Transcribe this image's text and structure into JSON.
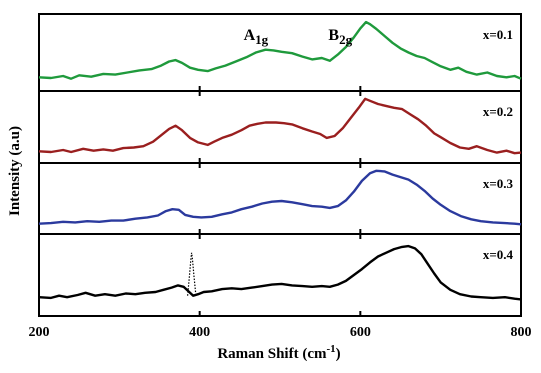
{
  "chart_data": {
    "type": "line",
    "xlabel": "Raman Shift (cm",
    "xlabel_sup": "-1",
    "xlabel_close": ")",
    "ylabel": "Intensity (a.u)",
    "xlim": [
      200,
      800
    ],
    "x_ticks": [
      200,
      400,
      600,
      800
    ],
    "grid": false,
    "annotations": [
      {
        "base": "A",
        "sub": "1g",
        "x": 470
      },
      {
        "base": "B",
        "sub": "2g",
        "x": 575
      }
    ],
    "panels": [
      {
        "name": "x=0.1",
        "color": "#1f9a3c",
        "ylim": [
          0,
          1
        ],
        "points": [
          [
            200,
            0.14
          ],
          [
            215,
            0.13
          ],
          [
            230,
            0.16
          ],
          [
            240,
            0.12
          ],
          [
            250,
            0.17
          ],
          [
            265,
            0.15
          ],
          [
            280,
            0.19
          ],
          [
            295,
            0.18
          ],
          [
            310,
            0.21
          ],
          [
            325,
            0.24
          ],
          [
            340,
            0.26
          ],
          [
            352,
            0.31
          ],
          [
            362,
            0.37
          ],
          [
            370,
            0.39
          ],
          [
            378,
            0.35
          ],
          [
            388,
            0.28
          ],
          [
            398,
            0.25
          ],
          [
            410,
            0.23
          ],
          [
            420,
            0.27
          ],
          [
            432,
            0.31
          ],
          [
            445,
            0.37
          ],
          [
            458,
            0.43
          ],
          [
            470,
            0.5
          ],
          [
            482,
            0.54
          ],
          [
            492,
            0.53
          ],
          [
            502,
            0.51
          ],
          [
            515,
            0.49
          ],
          [
            528,
            0.44
          ],
          [
            540,
            0.4
          ],
          [
            552,
            0.42
          ],
          [
            562,
            0.38
          ],
          [
            572,
            0.47
          ],
          [
            582,
            0.58
          ],
          [
            592,
            0.72
          ],
          [
            600,
            0.85
          ],
          [
            607,
            0.94
          ],
          [
            612,
            0.91
          ],
          [
            620,
            0.84
          ],
          [
            630,
            0.74
          ],
          [
            640,
            0.64
          ],
          [
            650,
            0.56
          ],
          [
            660,
            0.5
          ],
          [
            670,
            0.45
          ],
          [
            680,
            0.42
          ],
          [
            690,
            0.36
          ],
          [
            700,
            0.3
          ],
          [
            712,
            0.25
          ],
          [
            722,
            0.28
          ],
          [
            732,
            0.22
          ],
          [
            745,
            0.18
          ],
          [
            758,
            0.21
          ],
          [
            770,
            0.16
          ],
          [
            782,
            0.14
          ],
          [
            792,
            0.16
          ],
          [
            800,
            0.12
          ]
        ]
      },
      {
        "name": "x=0.2",
        "color": "#9a1f1f",
        "ylim": [
          0,
          1
        ],
        "points": [
          [
            200,
            0.12
          ],
          [
            215,
            0.11
          ],
          [
            230,
            0.14
          ],
          [
            240,
            0.11
          ],
          [
            255,
            0.16
          ],
          [
            268,
            0.13
          ],
          [
            280,
            0.15
          ],
          [
            292,
            0.13
          ],
          [
            305,
            0.17
          ],
          [
            318,
            0.18
          ],
          [
            330,
            0.2
          ],
          [
            342,
            0.27
          ],
          [
            352,
            0.37
          ],
          [
            362,
            0.47
          ],
          [
            370,
            0.52
          ],
          [
            378,
            0.45
          ],
          [
            388,
            0.33
          ],
          [
            398,
            0.26
          ],
          [
            410,
            0.22
          ],
          [
            418,
            0.27
          ],
          [
            428,
            0.33
          ],
          [
            440,
            0.38
          ],
          [
            452,
            0.45
          ],
          [
            462,
            0.52
          ],
          [
            472,
            0.55
          ],
          [
            482,
            0.57
          ],
          [
            495,
            0.57
          ],
          [
            505,
            0.56
          ],
          [
            515,
            0.54
          ],
          [
            528,
            0.48
          ],
          [
            540,
            0.43
          ],
          [
            550,
            0.39
          ],
          [
            558,
            0.33
          ],
          [
            568,
            0.36
          ],
          [
            578,
            0.48
          ],
          [
            588,
            0.64
          ],
          [
            598,
            0.8
          ],
          [
            606,
            0.94
          ],
          [
            612,
            0.91
          ],
          [
            622,
            0.86
          ],
          [
            632,
            0.83
          ],
          [
            642,
            0.8
          ],
          [
            652,
            0.78
          ],
          [
            662,
            0.7
          ],
          [
            672,
            0.62
          ],
          [
            682,
            0.52
          ],
          [
            692,
            0.4
          ],
          [
            700,
            0.34
          ],
          [
            712,
            0.25
          ],
          [
            724,
            0.18
          ],
          [
            735,
            0.16
          ],
          [
            745,
            0.2
          ],
          [
            758,
            0.14
          ],
          [
            770,
            0.1
          ],
          [
            782,
            0.13
          ],
          [
            792,
            0.09
          ],
          [
            800,
            0.1
          ]
        ]
      },
      {
        "name": "x=0.3",
        "color": "#2b3a9e",
        "ylim": [
          0,
          1
        ],
        "points": [
          [
            200,
            0.1
          ],
          [
            215,
            0.11
          ],
          [
            230,
            0.13
          ],
          [
            245,
            0.12
          ],
          [
            260,
            0.14
          ],
          [
            275,
            0.13
          ],
          [
            290,
            0.15
          ],
          [
            305,
            0.15
          ],
          [
            320,
            0.18
          ],
          [
            335,
            0.2
          ],
          [
            348,
            0.23
          ],
          [
            358,
            0.3
          ],
          [
            366,
            0.33
          ],
          [
            374,
            0.32
          ],
          [
            382,
            0.24
          ],
          [
            392,
            0.21
          ],
          [
            402,
            0.2
          ],
          [
            415,
            0.21
          ],
          [
            428,
            0.25
          ],
          [
            440,
            0.28
          ],
          [
            452,
            0.33
          ],
          [
            465,
            0.37
          ],
          [
            478,
            0.42
          ],
          [
            490,
            0.45
          ],
          [
            502,
            0.46
          ],
          [
            515,
            0.44
          ],
          [
            528,
            0.41
          ],
          [
            540,
            0.38
          ],
          [
            552,
            0.37
          ],
          [
            562,
            0.35
          ],
          [
            572,
            0.38
          ],
          [
            582,
            0.47
          ],
          [
            592,
            0.61
          ],
          [
            602,
            0.78
          ],
          [
            612,
            0.9
          ],
          [
            620,
            0.94
          ],
          [
            630,
            0.93
          ],
          [
            640,
            0.88
          ],
          [
            650,
            0.84
          ],
          [
            660,
            0.8
          ],
          [
            670,
            0.72
          ],
          [
            680,
            0.62
          ],
          [
            690,
            0.5
          ],
          [
            700,
            0.4
          ],
          [
            712,
            0.3
          ],
          [
            725,
            0.22
          ],
          [
            738,
            0.17
          ],
          [
            750,
            0.14
          ],
          [
            765,
            0.12
          ],
          [
            780,
            0.11
          ],
          [
            792,
            0.1
          ],
          [
            800,
            0.09
          ]
        ]
      },
      {
        "name": "x=0.4",
        "color": "#000000",
        "ylim": [
          0,
          1
        ],
        "points": [
          [
            200,
            0.2
          ],
          [
            215,
            0.19
          ],
          [
            225,
            0.22
          ],
          [
            235,
            0.2
          ],
          [
            248,
            0.23
          ],
          [
            258,
            0.26
          ],
          [
            270,
            0.22
          ],
          [
            282,
            0.24
          ],
          [
            295,
            0.22
          ],
          [
            308,
            0.25
          ],
          [
            320,
            0.24
          ],
          [
            332,
            0.26
          ],
          [
            345,
            0.27
          ],
          [
            355,
            0.3
          ],
          [
            365,
            0.33
          ],
          [
            373,
            0.36
          ],
          [
            380,
            0.34
          ],
          [
            386,
            0.28
          ],
          [
            392,
            0.22
          ],
          [
            398,
            0.24
          ],
          [
            405,
            0.27
          ],
          [
            415,
            0.28
          ],
          [
            428,
            0.31
          ],
          [
            440,
            0.32
          ],
          [
            452,
            0.31
          ],
          [
            465,
            0.33
          ],
          [
            478,
            0.35
          ],
          [
            490,
            0.37
          ],
          [
            502,
            0.38
          ],
          [
            515,
            0.36
          ],
          [
            528,
            0.35
          ],
          [
            540,
            0.34
          ],
          [
            552,
            0.35
          ],
          [
            562,
            0.34
          ],
          [
            572,
            0.37
          ],
          [
            582,
            0.42
          ],
          [
            592,
            0.5
          ],
          [
            602,
            0.58
          ],
          [
            612,
            0.67
          ],
          [
            622,
            0.75
          ],
          [
            632,
            0.8
          ],
          [
            642,
            0.85
          ],
          [
            652,
            0.88
          ],
          [
            660,
            0.89
          ],
          [
            668,
            0.86
          ],
          [
            676,
            0.78
          ],
          [
            684,
            0.65
          ],
          [
            692,
            0.52
          ],
          [
            700,
            0.4
          ],
          [
            712,
            0.3
          ],
          [
            724,
            0.24
          ],
          [
            738,
            0.21
          ],
          [
            750,
            0.2
          ],
          [
            765,
            0.19
          ],
          [
            780,
            0.2
          ],
          [
            792,
            0.18
          ],
          [
            800,
            0.17
          ]
        ],
        "spike": {
          "points": [
            [
              385,
              0.22
            ],
            [
              387,
              0.45
            ],
            [
              389,
              0.7
            ],
            [
              390,
              0.8
            ],
            [
              391,
              0.72
            ],
            [
              393,
              0.48
            ],
            [
              395,
              0.25
            ]
          ],
          "style": "dotted"
        }
      }
    ]
  }
}
